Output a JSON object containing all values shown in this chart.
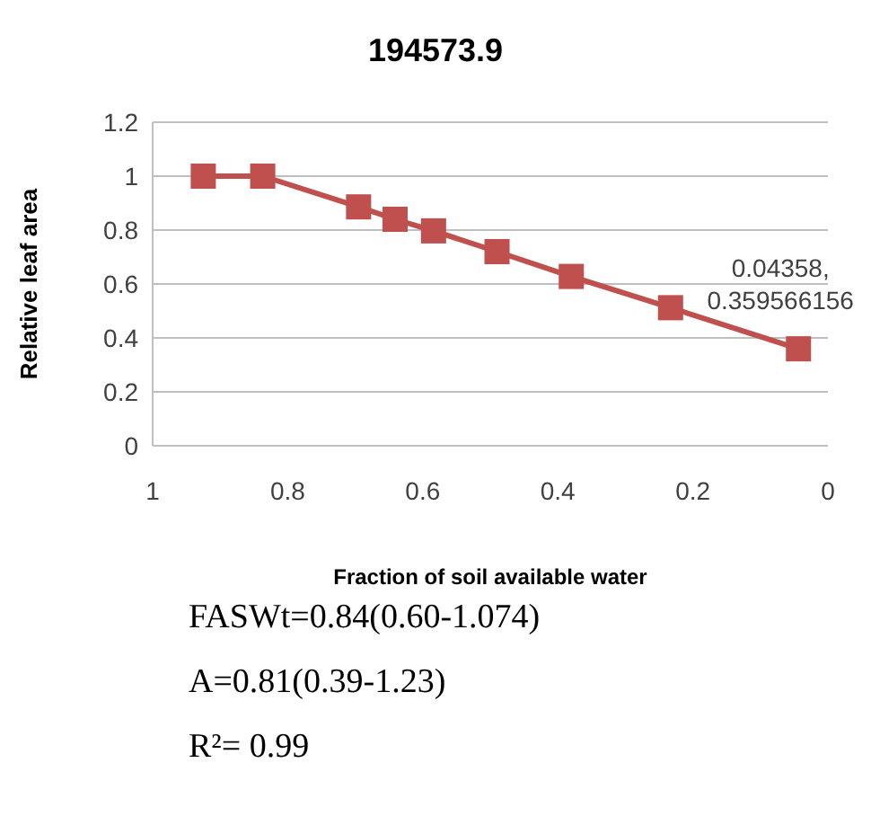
{
  "chart_data": {
    "type": "line",
    "title": "194573.9",
    "xlabel": "Fraction of soil available water",
    "ylabel": "Relative leaf area",
    "x": [
      0.925,
      0.837,
      0.695,
      0.641,
      0.584,
      0.49,
      0.38,
      0.233,
      0.04358
    ],
    "series": [
      {
        "color": "#c0504d",
        "values": [
          1.0,
          1.0,
          0.886,
          0.84,
          0.797,
          0.72,
          0.628,
          0.512,
          0.359566156
        ]
      }
    ],
    "xlim": [
      1,
      0
    ],
    "xticks": [
      1,
      0.8,
      0.6,
      0.4,
      0.2,
      0
    ],
    "ylim": [
      0,
      1.2
    ],
    "yticks": [
      0,
      0.2,
      0.4,
      0.6,
      0.8,
      1,
      1.2
    ],
    "grid": "y",
    "marker": "square",
    "legend": false,
    "annotations": [
      {
        "text": "0.04358, 0.359566156",
        "x": 0.04358,
        "y": 0.359566156
      },
      "FASWt=0.84(0.60-1.074)",
      "A=0.81(0.39-1.23)",
      "R²= 0.99"
    ]
  }
}
